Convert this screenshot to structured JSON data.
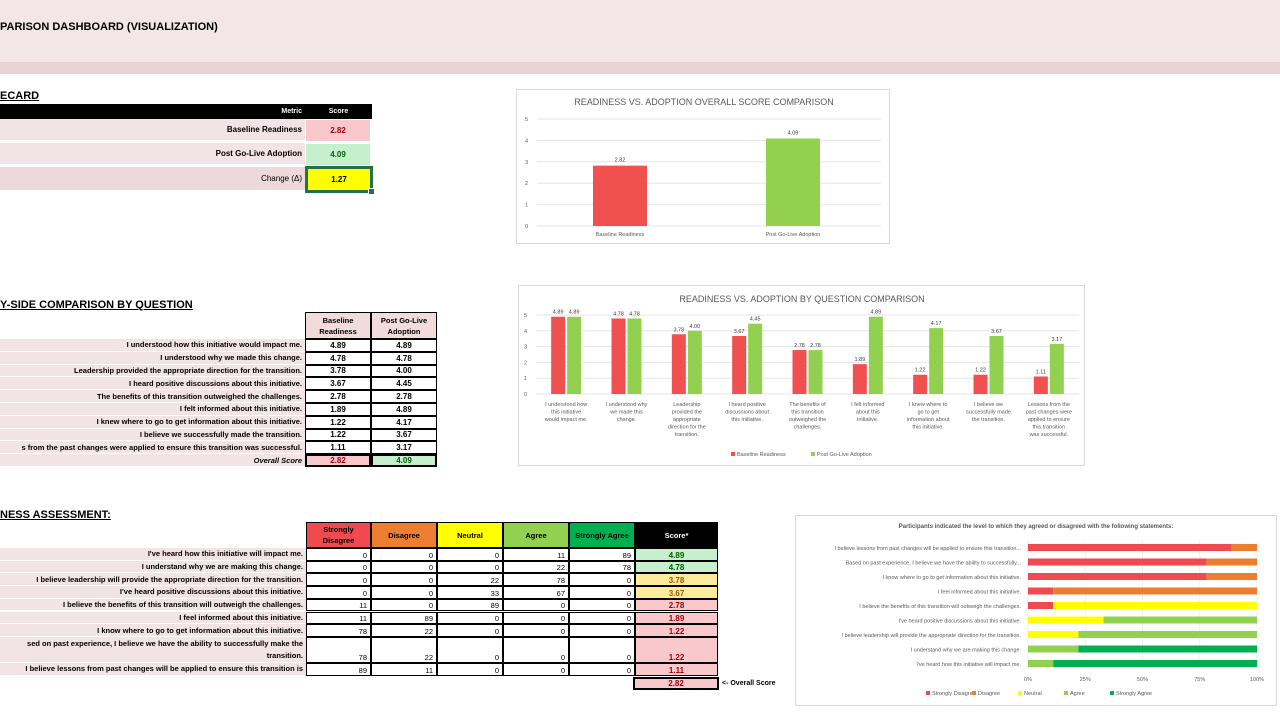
{
  "title": "PARISON DASHBOARD (VISUALIZATION)",
  "scorecard": {
    "heading": "ECARD",
    "col_metric": "Metric",
    "col_score": "Score",
    "rows": [
      {
        "label": "Baseline Readiness",
        "score": "2.82"
      },
      {
        "label": "Post Go-Live Adoption",
        "score": "4.09"
      },
      {
        "label": "Change (Δ)",
        "score": "1.27"
      }
    ]
  },
  "comparison": {
    "heading": "Y-SIDE COMPARISON BY QUESTION",
    "col_baseline": "Baseline Readiness",
    "col_post": "Post Go-Live Adoption",
    "rows": [
      {
        "q": "I understood how this initiative would impact me.",
        "b": "4.89",
        "p": "4.89"
      },
      {
        "q": "I understood why we made this change.",
        "b": "4.78",
        "p": "4.78"
      },
      {
        "q": "Leadership provided the appropriate direction for the transition.",
        "b": "3.78",
        "p": "4.00"
      },
      {
        "q": "I heard positive discussions about this initiative.",
        "b": "3.67",
        "p": "4.45"
      },
      {
        "q": "The benefits of this transition outweighed the challenges.",
        "b": "2.78",
        "p": "2.78"
      },
      {
        "q": "I felt informed about this initiative.",
        "b": "1.89",
        "p": "4.89"
      },
      {
        "q": "I knew where to go to get information about this initiative.",
        "b": "1.22",
        "p": "4.17"
      },
      {
        "q": "I believe we successfully made the transition.",
        "b": "1.22",
        "p": "3.67"
      },
      {
        "q": "s from the past changes were applied to ensure this transition was successful.",
        "b": "1.11",
        "p": "3.17"
      }
    ],
    "overall_label": "Overall Score",
    "overall_b": "2.82",
    "overall_p": "4.09"
  },
  "assessment": {
    "heading": "NESS ASSESSMENT:",
    "cols": [
      "Strongly Disagree",
      "Disagree",
      "Neutral",
      "Agree",
      "Strongly Agree",
      "Score*"
    ],
    "col_colors": [
      "#f0494f",
      "#ed7d31",
      "#ffff00",
      "#92d050",
      "#00b050",
      "#000000"
    ],
    "rows": [
      {
        "q": "I've heard how this initiative will impact me.",
        "v": [
          "0",
          "0",
          "0",
          "11",
          "89"
        ],
        "score": "4.89",
        "c": "green"
      },
      {
        "q": "I understand why we are making this change.",
        "v": [
          "0",
          "0",
          "0",
          "22",
          "78"
        ],
        "score": "4.78",
        "c": "green"
      },
      {
        "q": "I believe leadership will provide the appropriate direction for the transition.",
        "v": [
          "0",
          "0",
          "22",
          "78",
          "0"
        ],
        "score": "3.78",
        "c": "yel"
      },
      {
        "q": "I've heard positive discussions about this initiative.",
        "v": [
          "0",
          "0",
          "33",
          "67",
          "0"
        ],
        "score": "3.67",
        "c": "yel"
      },
      {
        "q": "I believe the benefits of this transition will outweigh the challenges.",
        "v": [
          "11",
          "0",
          "89",
          "0",
          "0"
        ],
        "score": "2.78",
        "c": "pink"
      },
      {
        "q": "I feel informed about this initiative.",
        "v": [
          "11",
          "89",
          "0",
          "0",
          "0"
        ],
        "score": "1.89",
        "c": "pink"
      },
      {
        "q": "I know where to go to get information about this initiative.",
        "v": [
          "78",
          "22",
          "0",
          "0",
          "0"
        ],
        "score": "1.22",
        "c": "pink"
      },
      {
        "q": "sed on past experience, I believe we have the ability to successfully make the transition.",
        "v": [
          "78",
          "22",
          "0",
          "0",
          "0"
        ],
        "score": "1.22",
        "c": "pink"
      },
      {
        "q": "I believe lessons from past changes will be applied to ensure this transition is",
        "v": [
          "89",
          "11",
          "0",
          "0",
          "0"
        ],
        "score": "1.11",
        "c": "pink"
      }
    ],
    "overall_score": "2.82",
    "overall_label": "<- Overall Score"
  },
  "colors": {
    "red": "#f05050",
    "green": "#92d050"
  },
  "chart_data": [
    {
      "type": "bar",
      "title": "READINESS VS. ADOPTION OVERALL SCORE COMPARISON",
      "categories": [
        "Baseline Readiness",
        "Post Go-Live Adoption"
      ],
      "values": [
        2.82,
        4.09
      ],
      "labels": [
        "2.82",
        "4.09"
      ],
      "ylim": [
        0,
        5
      ],
      "yticks": [
        "0",
        "1",
        "2",
        "3",
        "4",
        "5"
      ]
    },
    {
      "type": "bar",
      "title": "READINESS VS. ADOPTION BY QUESTION COMPARISON",
      "categories": [
        "I understood how this initiative would impact me.",
        "I understood why we made this change.",
        "Leadership provided the appropriate direction for the transition.",
        "I heard positive discussions about this initiative.",
        "The benefits of this transition outweighed the challenges.",
        "I felt informed about this initiative.",
        "I knew where to go to get information about this initiative.",
        "I believe we successfully made the transition.",
        "Lessons from the past changes were applied to ensure this transition was successful."
      ],
      "series": [
        {
          "name": "Baseline Readiness",
          "values": [
            4.89,
            4.78,
            3.78,
            3.67,
            2.78,
            1.89,
            1.22,
            1.22,
            1.11
          ],
          "labels": [
            "4.89",
            "4.78",
            "3.78",
            "3.67",
            "2.78",
            "1.89",
            "1.22",
            "1.22",
            "1.11"
          ]
        },
        {
          "name": "Post Go-Live Adoption",
          "values": [
            4.89,
            4.78,
            4.0,
            4.45,
            2.78,
            4.89,
            4.17,
            3.67,
            3.17
          ],
          "labels": [
            "4.89",
            "4.78",
            "4.00",
            "4.45",
            "2.78",
            "4.89",
            "4.17",
            "3.67",
            "3.17"
          ]
        }
      ],
      "ylim": [
        0,
        5
      ],
      "yticks": [
        "0",
        "1",
        "2",
        "3",
        "4",
        "5"
      ],
      "legend": "bottom"
    },
    {
      "type": "bar",
      "orientation": "horizontal-stacked-100",
      "title": "Participants indicated the level to which they agreed or disagreed with the following statements:",
      "categories": [
        "I believe lessons from past changes will be applied to ensure this transition...",
        "Based on past experience, I believe we have the ability to successfully...",
        "I know where to go to get information about this initiative.",
        "I feel informed about this initiative.",
        "I believe the benefits of this transition will outweigh the challenges.",
        "I've heard positive discussions about this initiative.",
        "I believe leadership will provide the appropriate direction for the transition.",
        "I understand why we are making this change.",
        "I've heard how this initiative will impact me."
      ],
      "series": [
        {
          "name": "Strongly Disagree",
          "values": [
            89,
            78,
            78,
            11,
            11,
            0,
            0,
            0,
            0
          ]
        },
        {
          "name": "Disagree",
          "values": [
            11,
            22,
            22,
            89,
            0,
            0,
            0,
            0,
            0
          ]
        },
        {
          "name": "Neutral",
          "values": [
            0,
            0,
            0,
            0,
            89,
            33,
            22,
            0,
            0
          ]
        },
        {
          "name": "Agree",
          "values": [
            0,
            0,
            0,
            0,
            0,
            67,
            78,
            22,
            11
          ]
        },
        {
          "name": "Strongly Agree",
          "values": [
            0,
            0,
            0,
            0,
            0,
            0,
            0,
            78,
            89
          ]
        }
      ],
      "xticks": [
        "0%",
        "25%",
        "50%",
        "75%",
        "100%"
      ],
      "legend": "bottom"
    }
  ]
}
